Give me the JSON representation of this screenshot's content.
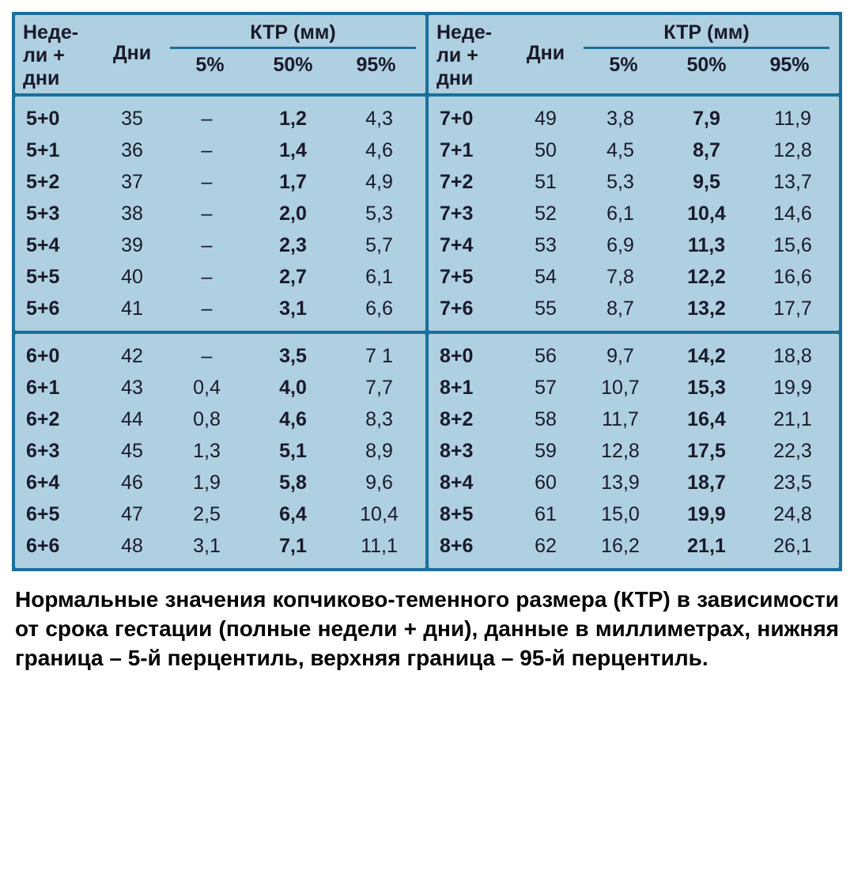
{
  "colors": {
    "frame": "#1c6f9c",
    "cell_bg": "#aed0e0",
    "text": "#1a1a2a",
    "caption": "#000000",
    "page_bg": "#ffffff"
  },
  "typography": {
    "family": "Arial",
    "header_fontsize_pt": 19,
    "data_fontsize_pt": 19,
    "caption_fontsize_pt": 21,
    "header_weight": 700,
    "bold_col_weight": 700
  },
  "header": {
    "weeks": "Неде-\nли +\nдни",
    "days": "Дни",
    "ktr": "КТР (мм)",
    "p5": "5%",
    "p50": "50%",
    "p95": "95%"
  },
  "left": {
    "block1": [
      {
        "w": "5+0",
        "d": "35",
        "p5": "–",
        "p50": "1,2",
        "p95": "4,3"
      },
      {
        "w": "5+1",
        "d": "36",
        "p5": "–",
        "p50": "1,4",
        "p95": "4,6"
      },
      {
        "w": "5+2",
        "d": "37",
        "p5": "–",
        "p50": "1,7",
        "p95": "4,9"
      },
      {
        "w": "5+3",
        "d": "38",
        "p5": "–",
        "p50": "2,0",
        "p95": "5,3"
      },
      {
        "w": "5+4",
        "d": "39",
        "p5": "–",
        "p50": "2,3",
        "p95": "5,7"
      },
      {
        "w": "5+5",
        "d": "40",
        "p5": "–",
        "p50": "2,7",
        "p95": "6,1"
      },
      {
        "w": "5+6",
        "d": "41",
        "p5": "–",
        "p50": "3,1",
        "p95": "6,6"
      }
    ],
    "block2": [
      {
        "w": "6+0",
        "d": "42",
        "p5": "–",
        "p50": "3,5",
        "p95": "7 1"
      },
      {
        "w": "6+1",
        "d": "43",
        "p5": "0,4",
        "p50": "4,0",
        "p95": "7,7"
      },
      {
        "w": "6+2",
        "d": "44",
        "p5": "0,8",
        "p50": "4,6",
        "p95": "8,3"
      },
      {
        "w": "6+3",
        "d": "45",
        "p5": "1,3",
        "p50": "5,1",
        "p95": "8,9"
      },
      {
        "w": "6+4",
        "d": "46",
        "p5": "1,9",
        "p50": "5,8",
        "p95": "9,6"
      },
      {
        "w": "6+5",
        "d": "47",
        "p5": "2,5",
        "p50": "6,4",
        "p95": "10,4"
      },
      {
        "w": "6+6",
        "d": "48",
        "p5": "3,1",
        "p50": "7,1",
        "p95": "11,1"
      }
    ]
  },
  "right": {
    "block1": [
      {
        "w": "7+0",
        "d": "49",
        "p5": "3,8",
        "p50": "7,9",
        "p95": "11,9"
      },
      {
        "w": "7+1",
        "d": "50",
        "p5": "4,5",
        "p50": "8,7",
        "p95": "12,8"
      },
      {
        "w": "7+2",
        "d": "51",
        "p5": "5,3",
        "p50": "9,5",
        "p95": "13,7"
      },
      {
        "w": "7+3",
        "d": "52",
        "p5": "6,1",
        "p50": "10,4",
        "p95": "14,6"
      },
      {
        "w": "7+4",
        "d": "53",
        "p5": "6,9",
        "p50": "11,3",
        "p95": "15,6"
      },
      {
        "w": "7+5",
        "d": "54",
        "p5": "7,8",
        "p50": "12,2",
        "p95": "16,6"
      },
      {
        "w": "7+6",
        "d": "55",
        "p5": "8,7",
        "p50": "13,2",
        "p95": "17,7"
      }
    ],
    "block2": [
      {
        "w": "8+0",
        "d": "56",
        "p5": "9,7",
        "p50": "14,2",
        "p95": "18,8"
      },
      {
        "w": "8+1",
        "d": "57",
        "p5": "10,7",
        "p50": "15,3",
        "p95": "19,9"
      },
      {
        "w": "8+2",
        "d": "58",
        "p5": "11,7",
        "p50": "16,4",
        "p95": "21,1"
      },
      {
        "w": "8+3",
        "d": "59",
        "p5": "12,8",
        "p50": "17,5",
        "p95": "22,3"
      },
      {
        "w": "8+4",
        "d": "60",
        "p5": "13,9",
        "p50": "18,7",
        "p95": "23,5"
      },
      {
        "w": "8+5",
        "d": "61",
        "p5": "15,0",
        "p50": "19,9",
        "p95": "24,8"
      },
      {
        "w": "8+6",
        "d": "62",
        "p5": "16,2",
        "p50": "21,1",
        "p95": "26,1"
      }
    ]
  },
  "caption": "Нормальные значения копчиково-теменного размера (КТР) в зависимости от срока гестации (полные недели + дни), данные в миллиметрах, нижняя граница – 5-й перцентиль, верхняя граница – 95-й перцентиль."
}
